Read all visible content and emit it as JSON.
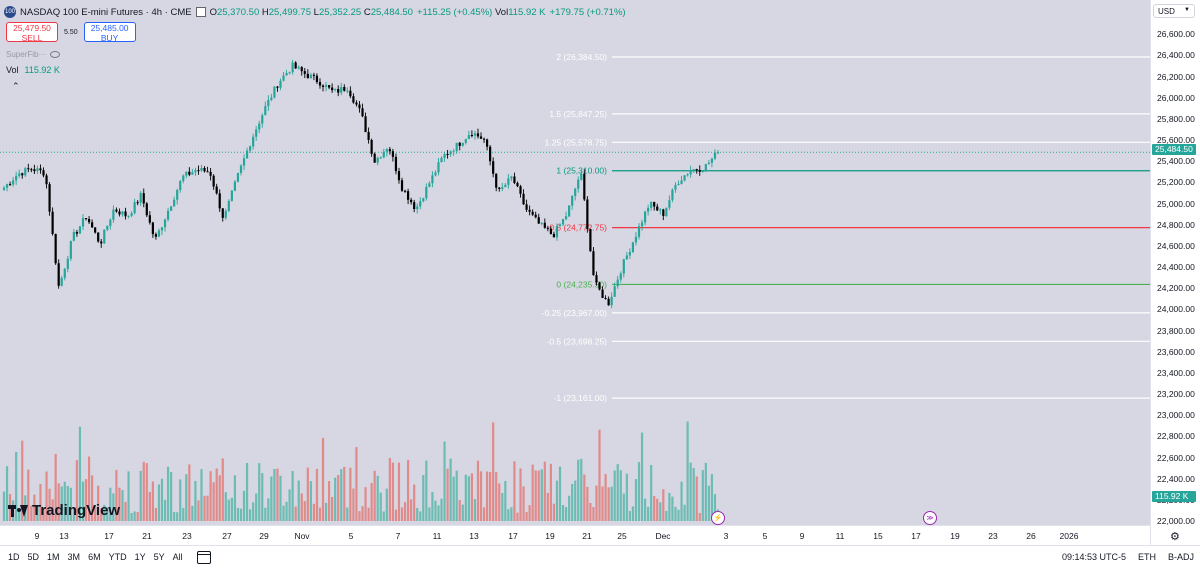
{
  "header": {
    "symbol_icon": "100",
    "title": "NASDAQ 100 E-mini Futures · 4h · CME",
    "open": "25,370.50",
    "high": "25,499.75",
    "low": "25,352.25",
    "close": "25,484.50",
    "change": "+115.25 (+0.45%)",
    "vol": "115.92 K",
    "vol_change": "+179.75 (+0.71%)"
  },
  "trade": {
    "sell_price": "25,479.50",
    "sell_label": "SELL",
    "spread": "5.50",
    "buy_price": "25,485.00",
    "buy_label": "BUY"
  },
  "study_name": "SuperFib",
  "volume_legend": {
    "label": "Vol",
    "value": "115.92 K"
  },
  "currency": "USD",
  "last_price": "25,484.50",
  "last_volume": "115.92 K",
  "logo_text": "TradingView",
  "bottombar": {
    "ranges": [
      "1D",
      "5D",
      "1M",
      "3M",
      "6M",
      "YTD",
      "1Y",
      "5Y",
      "All"
    ],
    "time": "09:14:53 UTC-5",
    "session": "ETH",
    "adj": "B-ADJ"
  },
  "colors": {
    "up": "#26a69a",
    "down": "#000000",
    "vol_up": "#6cbcb3",
    "vol_down": "#e08a8a",
    "fib_up": "#089981",
    "fib_mid": "#f23645"
  },
  "chart_data": {
    "type": "candlestick",
    "timeframe": "4h",
    "y_axis_ticks": [
      "26,600.00",
      "26,400.00",
      "26,200.00",
      "26,000.00",
      "25,800.00",
      "25,600.00",
      "25,400.00",
      "25,200.00",
      "25,000.00",
      "24,800.00",
      "24,600.00",
      "24,400.00",
      "24,200.00",
      "24,000.00",
      "23,800.00",
      "23,600.00",
      "23,400.00",
      "23,200.00",
      "23,000.00",
      "22,800.00",
      "22,600.00",
      "22,400.00",
      "22,200.00",
      "22,000.00"
    ],
    "ylim": [
      22000,
      26640
    ],
    "x_axis_ticks": [
      "9",
      "13",
      "17",
      "21",
      "23",
      "27",
      "29",
      "Nov",
      "5",
      "7",
      "11",
      "13",
      "17",
      "19",
      "21",
      "25",
      "Dec",
      "3",
      "5",
      "9",
      "11",
      "15",
      "17",
      "19",
      "23",
      "26",
      "2026"
    ],
    "close_path": [
      {
        "x": "Oct 8",
        "close": 25150
      },
      {
        "x": "Oct 9",
        "close": 25280
      },
      {
        "x": "Oct 10",
        "close": 25330
      },
      {
        "x": "Oct 10 b",
        "close": 25290
      },
      {
        "x": "Oct 10 c",
        "close": 24200
      },
      {
        "x": "Oct 13",
        "close": 24680
      },
      {
        "x": "Oct 14",
        "close": 24880
      },
      {
        "x": "Oct 15",
        "close": 24620
      },
      {
        "x": "Oct 16",
        "close": 24950
      },
      {
        "x": "Oct 17",
        "close": 24880
      },
      {
        "x": "Oct 20",
        "close": 25080
      },
      {
        "x": "Oct 21",
        "close": 24650
      },
      {
        "x": "Oct 22",
        "close": 24950
      },
      {
        "x": "Oct 22 b",
        "close": 25250
      },
      {
        "x": "Oct 23",
        "close": 25320
      },
      {
        "x": "Oct 24",
        "close": 25300
      },
      {
        "x": "Oct 24 b",
        "close": 24850
      },
      {
        "x": "Oct 27",
        "close": 25250
      },
      {
        "x": "Oct 27 b",
        "close": 25600
      },
      {
        "x": "Oct 28",
        "close": 25900
      },
      {
        "x": "Oct 28 b",
        "close": 26150
      },
      {
        "x": "Oct 29",
        "close": 26300
      },
      {
        "x": "Oct 29 b",
        "close": 26220
      },
      {
        "x": "Oct 30",
        "close": 26150
      },
      {
        "x": "Oct 31",
        "close": 26050
      },
      {
        "x": "Nov 3",
        "close": 26100
      },
      {
        "x": "Nov 3 b",
        "close": 25850
      },
      {
        "x": "Nov 4",
        "close": 25400
      },
      {
        "x": "Nov 5",
        "close": 25550
      },
      {
        "x": "Nov 6",
        "close": 25150
      },
      {
        "x": "Nov 7",
        "close": 24950
      },
      {
        "x": "Nov 7 b",
        "close": 25200
      },
      {
        "x": "Nov 10",
        "close": 25450
      },
      {
        "x": "Nov 11",
        "close": 25550
      },
      {
        "x": "Nov 12",
        "close": 25680
      },
      {
        "x": "Nov 13",
        "close": 25600
      },
      {
        "x": "Nov 13 b",
        "close": 25100
      },
      {
        "x": "Nov 14",
        "close": 25250
      },
      {
        "x": "Nov 17",
        "close": 24950
      },
      {
        "x": "Nov 18",
        "close": 24800
      },
      {
        "x": "Nov 19",
        "close": 24700
      },
      {
        "x": "Nov 19 b",
        "close": 24900
      },
      {
        "x": "Nov 20",
        "close": 25300
      },
      {
        "x": "Nov 20 b",
        "close": 24250
      },
      {
        "x": "Nov 21",
        "close": 24050
      },
      {
        "x": "Nov 21 b",
        "close": 24400
      },
      {
        "x": "Nov 24",
        "close": 24700
      },
      {
        "x": "Nov 24 b",
        "close": 25000
      },
      {
        "x": "Nov 25",
        "close": 24900
      },
      {
        "x": "Nov 26",
        "close": 25200
      },
      {
        "x": "Nov 26 b",
        "close": 25320
      },
      {
        "x": "Nov 28",
        "close": 25340
      },
      {
        "x": "Nov 28 b",
        "close": 25484.5
      }
    ],
    "fib_levels": [
      {
        "label": "2 (26,384.50)",
        "value": 26384.5,
        "color": "#ffffff"
      },
      {
        "label": "1.5 (25,847.25)",
        "value": 25847.25,
        "color": "#ffffff"
      },
      {
        "label": "1.25 (25,578.75)",
        "value": 25578.75,
        "color": "#ffffff"
      },
      {
        "label": "1 (25,310.00)",
        "value": 25310,
        "color": "#089981"
      },
      {
        "label": "0.5 (24,772.75)",
        "value": 24772.75,
        "color": "#f23645"
      },
      {
        "label": "0 (24,235.50)",
        "value": 24235.5,
        "color": "#4caf50"
      },
      {
        "label": "-0.25 (23,967.00)",
        "value": 23967,
        "color": "#ffffff"
      },
      {
        "label": "-0.5 (23,698.25)",
        "value": 23698.25,
        "color": "#ffffff"
      },
      {
        "label": "-1 (23,161.00)",
        "value": 23161,
        "color": "#ffffff"
      }
    ],
    "last_volume": "115.92 K"
  }
}
